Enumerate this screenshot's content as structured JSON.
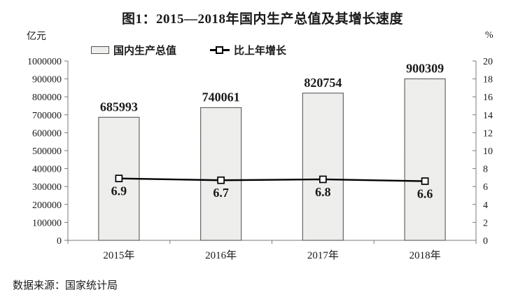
{
  "title": "图1：2015—2018年国内生产总值及其增长速度",
  "left_axis_unit": "亿元",
  "right_axis_unit": "%",
  "legend": {
    "bar_label": "国内生产总值",
    "line_label": "比上年增长"
  },
  "source": "数据来源：国家统计局",
  "colors": {
    "text": "#1a1a1a",
    "axis": "#7a7a7a",
    "bar_fill_base": "#ffffff",
    "bar_pattern_dot": "#dcdcda",
    "bar_border": "#666666",
    "line": "#000000",
    "marker_fill": "#ffffff"
  },
  "chart_data": {
    "type": "bar+line",
    "title": "图1：2015—2018年国内生产总值及其增长速度",
    "categories": [
      "2015年",
      "2016年",
      "2017年",
      "2018年"
    ],
    "series": [
      {
        "name": "国内生产总值",
        "type": "bar",
        "axis": "left",
        "values": [
          685993,
          740061,
          820754,
          900309
        ]
      },
      {
        "name": "比上年增长",
        "type": "line",
        "axis": "right",
        "values": [
          6.9,
          6.7,
          6.8,
          6.6
        ]
      }
    ],
    "left_axis": {
      "label": "亿元",
      "min": 0,
      "max": 1000000,
      "step": 100000
    },
    "right_axis": {
      "label": "%",
      "min": 0,
      "max": 20,
      "step": 2
    },
    "grid": false,
    "legend_position": "top"
  }
}
